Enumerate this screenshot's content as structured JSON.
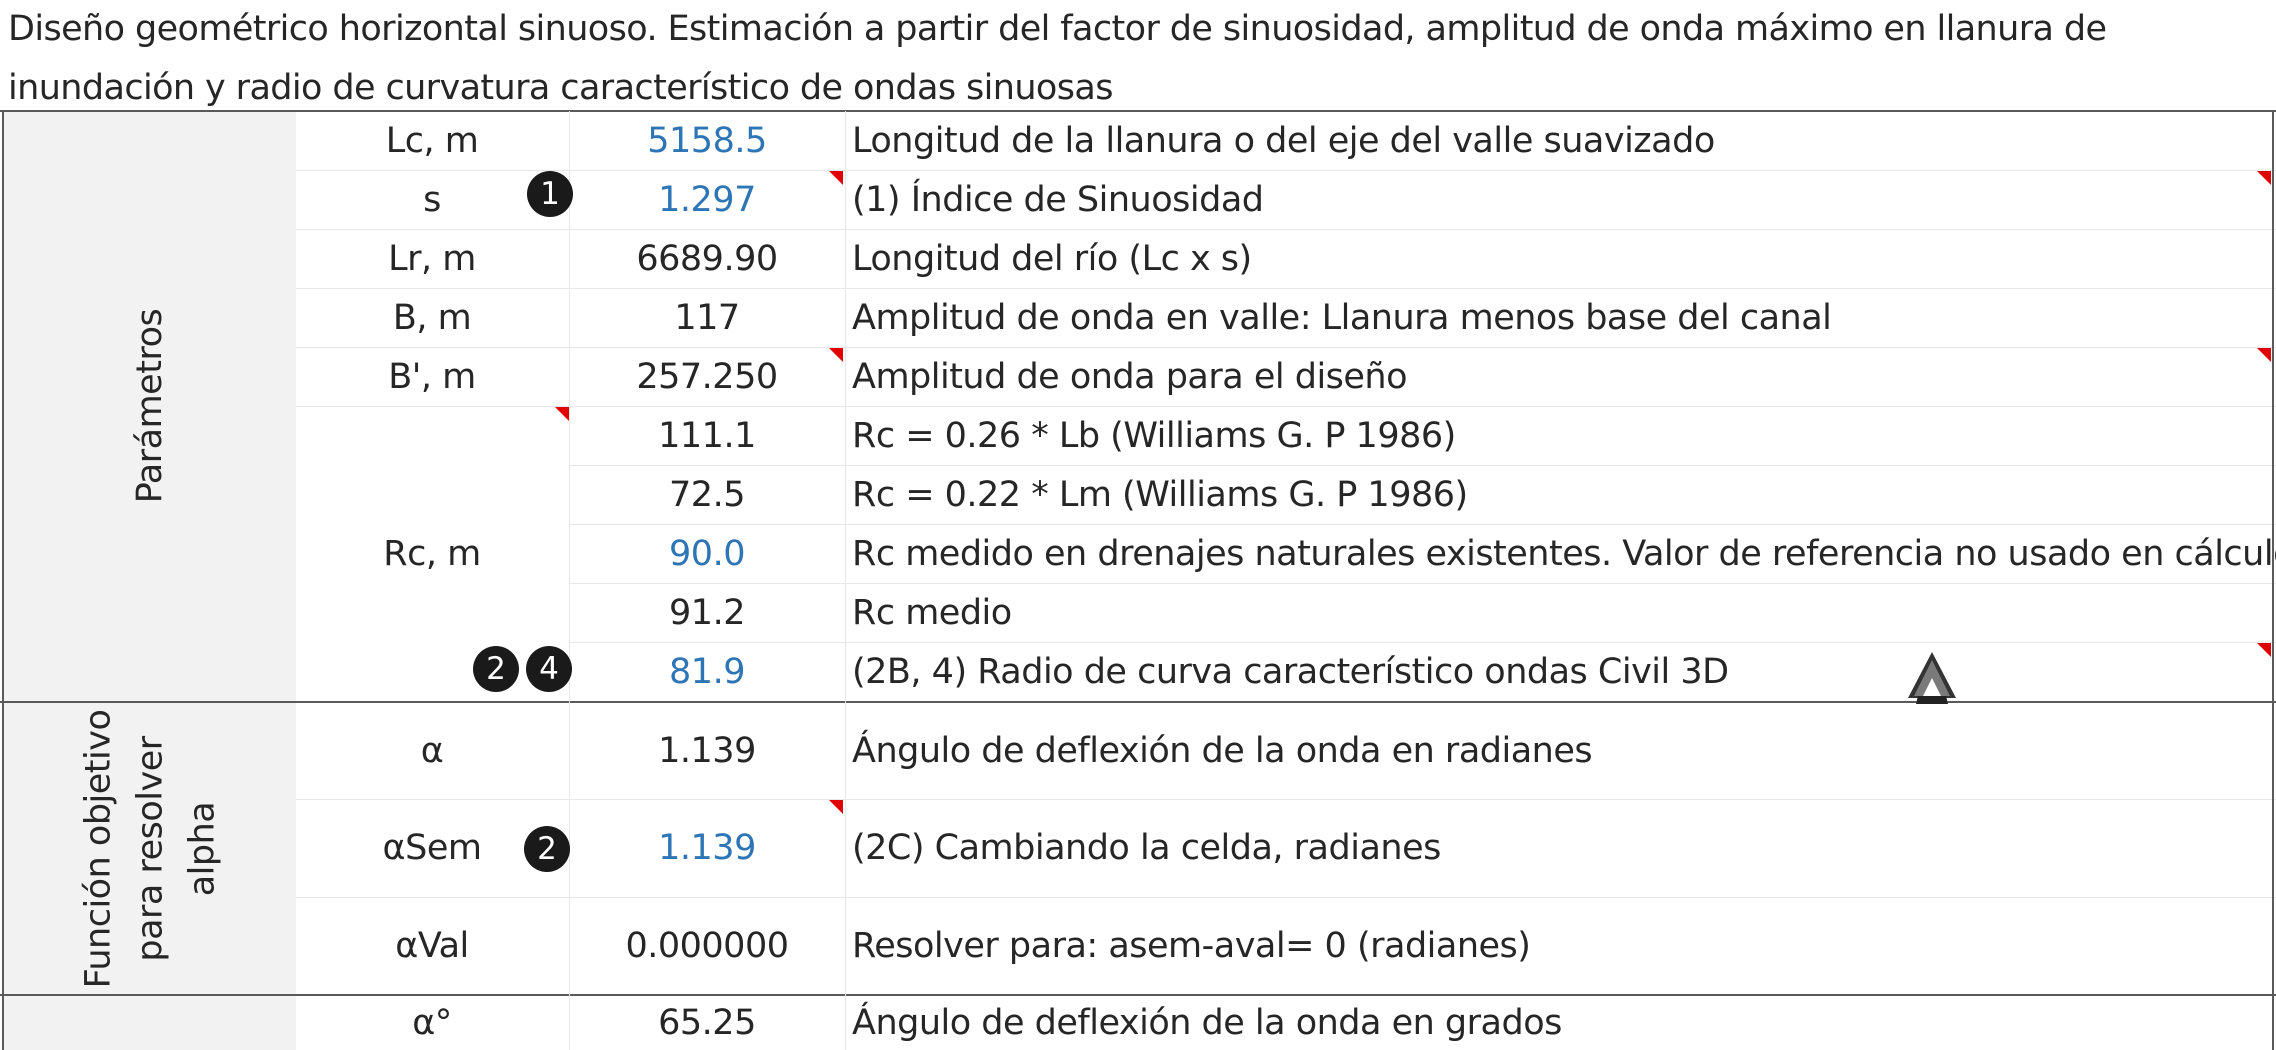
{
  "title": "Diseño geométrico horizontal sinuoso. Estimación a partir del factor de sinuosidad, amplitud de onda máximo en llanura de inundación y radio de curvatura característico de ondas sinuosas",
  "sections": {
    "parametros": "Parámetros",
    "funcion_l1": "Función objetivo",
    "funcion_l2": "para resolver",
    "funcion_l3": "alpha"
  },
  "rows": [
    {
      "name": "Lc, m",
      "value": "5158.5",
      "desc": "Longitud de la llanura o del eje del valle suavizado"
    },
    {
      "name": "s",
      "value": "1.297",
      "desc": "(1) Índice de Sinuosidad"
    },
    {
      "name": "Lr, m",
      "value": "6689.90",
      "desc": "Longitud del río (Lc x s)"
    },
    {
      "name": "B, m",
      "value": "117",
      "desc": "Amplitud de onda en valle: Llanura menos base del canal"
    },
    {
      "name": "B', m",
      "value": "257.250",
      "desc": "Amplitud de onda para el diseño"
    },
    {
      "name": "",
      "value": "111.1",
      "desc": "Rc = 0.26 * Lb (Williams G. P 1986)"
    },
    {
      "name": "",
      "value": "72.5",
      "desc": "Rc = 0.22 * Lm (Williams G. P 1986)"
    },
    {
      "name": "Rc, m",
      "value": "90.0",
      "desc": "Rc medido en drenajes naturales existentes. Valor de referencia no usado en cálculos"
    },
    {
      "name": "",
      "value": "91.2",
      "desc": "Rc medio"
    },
    {
      "name": "",
      "value": "81.9",
      "desc": "(2B, 4) Radio de curva característico ondas Civil 3D"
    },
    {
      "name": "α",
      "value": "1.139",
      "desc": "Ángulo de deflexión de la onda en radianes"
    },
    {
      "name": "αSem",
      "value": "1.139",
      "desc": "(2C) Cambiando la celda, radianes"
    },
    {
      "name": "αVal",
      "value": "0.000000",
      "desc": "Resolver para: asem-aval= 0 (radianes)"
    },
    {
      "name": "α°",
      "value": "65.25",
      "desc": "Ángulo de deflexión de la onda en grados"
    }
  ],
  "badges": {
    "s": "1",
    "rc_a": "2",
    "rc_b": "4",
    "alpha_sem": "2"
  },
  "colors": {
    "input_value": "#2e75b6",
    "comment_marker": "#e00000",
    "text": "#262626",
    "band": "#f2f2f2"
  },
  "icons": {
    "civil3d": "autocad-civil-3d-icon"
  }
}
